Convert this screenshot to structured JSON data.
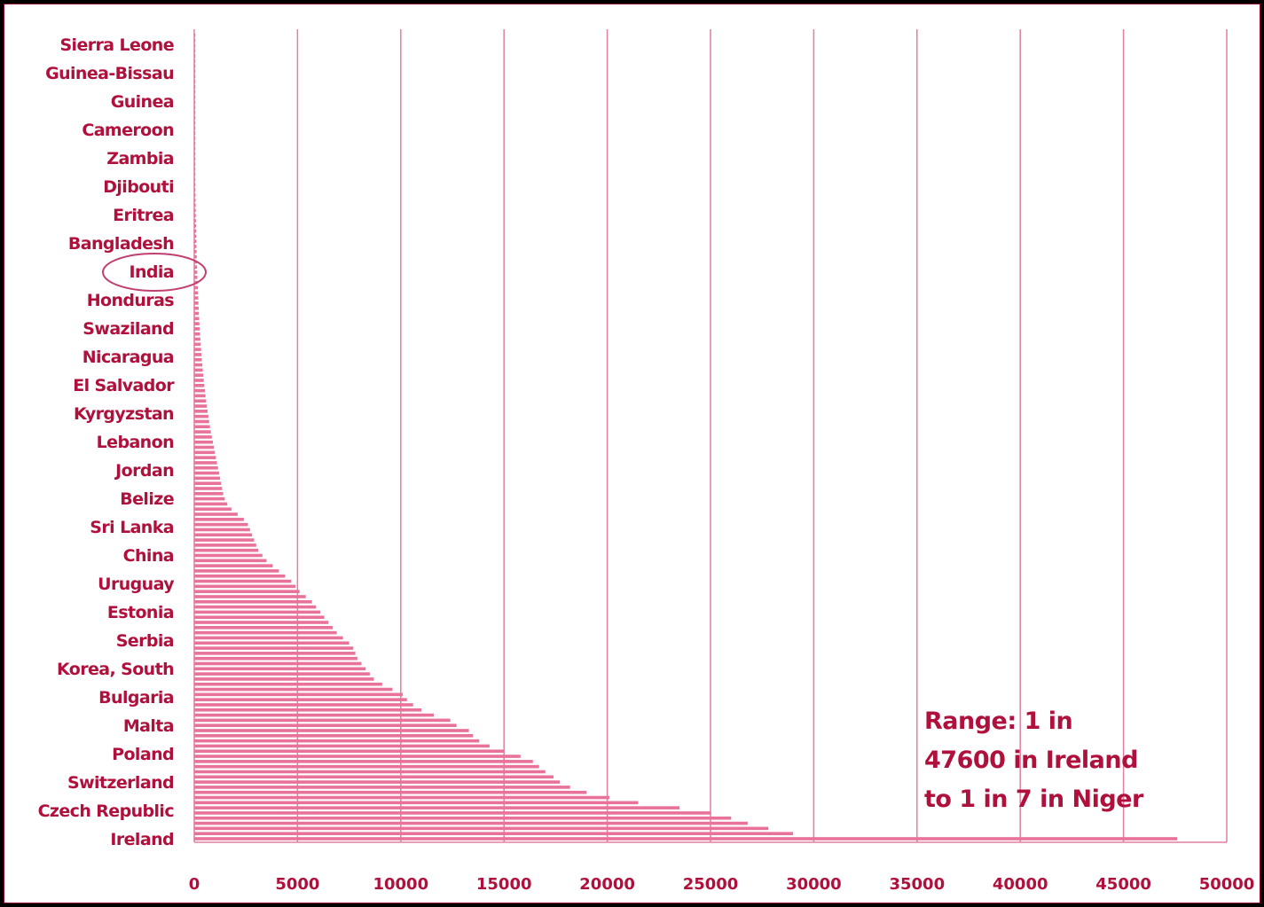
{
  "chart_data": {
    "type": "bar",
    "orientation": "horizontal",
    "title": "",
    "xlabel": "",
    "ylabel": "",
    "xlim": [
      0,
      50000
    ],
    "x_ticks": [
      "0",
      "5000",
      "10000",
      "15000",
      "20000",
      "25000",
      "30000",
      "35000",
      "40000",
      "45000",
      "50000"
    ],
    "grid": "vertical",
    "labeled_categories": [
      "Sierra Leone",
      "Guinea-Bissau",
      "Guinea",
      "Cameroon",
      "Zambia",
      "Djibouti",
      "Eritrea",
      "Bangladesh",
      "India",
      "Honduras",
      "Swaziland",
      "Nicaragua",
      "El Salvador",
      "Kyrgyzstan",
      "Lebanon",
      "Jordan",
      "Belize",
      "Sri Lanka",
      "China",
      "Uruguay",
      "Estonia",
      "Serbia",
      "Korea, South",
      "Bulgaria",
      "Malta",
      "Poland",
      "Switzerland",
      "Czech Republic",
      "Ireland"
    ],
    "highlighted_category": "India",
    "values": [
      7,
      8,
      9,
      10,
      11,
      12,
      13,
      14,
      15,
      16,
      17,
      18,
      19,
      20,
      21,
      22,
      23,
      25,
      27,
      29,
      31,
      33,
      35,
      37,
      39,
      42,
      45,
      48,
      51,
      54,
      57,
      61,
      64,
      68,
      72,
      77,
      81,
      86,
      91,
      97,
      102,
      108,
      115,
      122,
      129,
      136,
      144,
      152,
      161,
      170,
      180,
      190,
      201,
      212,
      224,
      237,
      250,
      264,
      279,
      295,
      312,
      330,
      348,
      368,
      390,
      412,
      436,
      461,
      487,
      515,
      545,
      576,
      609,
      644,
      681,
      720,
      761,
      805,
      851,
      900,
      950,
      1000,
      1050,
      1100,
      1150,
      1200,
      1250,
      1300,
      1350,
      1400,
      1480,
      1600,
      1800,
      2100,
      2400,
      2600,
      2700,
      2800,
      2900,
      3000,
      3100,
      3300,
      3500,
      3800,
      4100,
      4400,
      4700,
      4900,
      5100,
      5400,
      5700,
      5900,
      6100,
      6300,
      6500,
      6700,
      6900,
      7200,
      7500,
      7700,
      7800,
      7900,
      8100,
      8300,
      8500,
      8700,
      9100,
      9600,
      10100,
      10300,
      10600,
      11000,
      11600,
      12400,
      12700,
      13300,
      13500,
      13800,
      14300,
      15000,
      15800,
      16400,
      16700,
      17000,
      17400,
      17700,
      18200,
      19000,
      20100,
      21500,
      23500,
      25000,
      26000,
      26800,
      27800,
      29000,
      47600
    ],
    "bar_color": "#e8729a",
    "grid_color": "#e07fa2",
    "label_color": "#b0103c"
  },
  "annotation": {
    "lines": [
      "Range: 1 in",
      "47600 in Ireland",
      "to 1 in  7 in Niger"
    ]
  }
}
